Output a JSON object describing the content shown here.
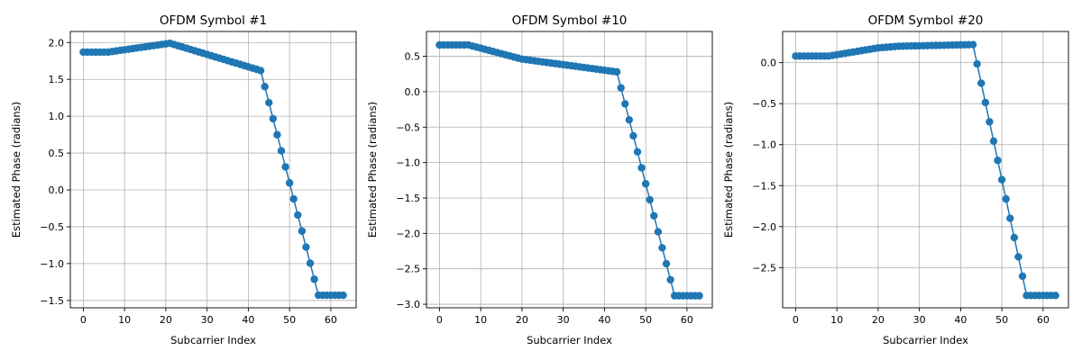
{
  "chart_data": [
    {
      "type": "line",
      "title": "OFDM Symbol #1",
      "xlabel": "Subcarrier Index",
      "ylabel": "Estimated Phase (radians)",
      "xlim": [
        -3.15,
        66.15
      ],
      "ylim": [
        -1.6,
        2.15
      ],
      "xticks": [
        0,
        10,
        20,
        30,
        40,
        50,
        60
      ],
      "yticks": [
        -1.5,
        -1.0,
        -0.5,
        0.0,
        0.5,
        1.0,
        1.5,
        2.0
      ],
      "ytick_labels": [
        "−1.5",
        "−1.0",
        "−0.5",
        "0.0",
        "0.5",
        "1.0",
        "1.5",
        "2.0"
      ],
      "grid": true,
      "color": "#1f77b4",
      "segments": [
        {
          "from": 0,
          "to": 6,
          "start": 1.87,
          "end": 1.87
        },
        {
          "from": 6,
          "to": 21,
          "start": 1.87,
          "end": 1.99
        },
        {
          "from": 21,
          "to": 43,
          "start": 1.99,
          "end": 1.62
        },
        {
          "from": 43,
          "to": 57,
          "start": 1.62,
          "end": -1.43
        },
        {
          "from": 57,
          "to": 63,
          "start": -1.43,
          "end": -1.43
        }
      ]
    },
    {
      "type": "line",
      "title": "OFDM Symbol #10",
      "xlabel": "Subcarrier Index",
      "ylabel": "Estimated Phase (radians)",
      "xlim": [
        -3.15,
        66.15
      ],
      "ylim": [
        -3.05,
        0.85
      ],
      "xticks": [
        0,
        10,
        20,
        30,
        40,
        50,
        60
      ],
      "yticks": [
        -3.0,
        -2.5,
        -2.0,
        -1.5,
        -1.0,
        -0.5,
        0.0,
        0.5
      ],
      "ytick_labels": [
        "−3.0",
        "−2.5",
        "−2.0",
        "−1.5",
        "−1.0",
        "−0.5",
        "0.0",
        "0.5"
      ],
      "grid": true,
      "color": "#1f77b4",
      "segments": [
        {
          "from": 0,
          "to": 7,
          "start": 0.66,
          "end": 0.66
        },
        {
          "from": 7,
          "to": 20,
          "start": 0.66,
          "end": 0.46
        },
        {
          "from": 20,
          "to": 43,
          "start": 0.46,
          "end": 0.28
        },
        {
          "from": 43,
          "to": 57,
          "start": 0.28,
          "end": -2.88
        },
        {
          "from": 57,
          "to": 63,
          "start": -2.88,
          "end": -2.88
        }
      ]
    },
    {
      "type": "line",
      "title": "OFDM Symbol #20",
      "xlabel": "Subcarrier Index",
      "ylabel": "Estimated Phase (radians)",
      "xlim": [
        -3.15,
        66.15
      ],
      "ylim": [
        -2.99,
        0.38
      ],
      "xticks": [
        0,
        10,
        20,
        30,
        40,
        50,
        60
      ],
      "yticks": [
        -2.5,
        -2.0,
        -1.5,
        -1.0,
        -0.5,
        0.0
      ],
      "ytick_labels": [
        "−2.5",
        "−2.0",
        "−1.5",
        "−1.0",
        "−0.5",
        "0.0"
      ],
      "grid": true,
      "color": "#1f77b4",
      "segments": [
        {
          "from": 0,
          "to": 8,
          "start": 0.08,
          "end": 0.08
        },
        {
          "from": 8,
          "to": 20,
          "start": 0.08,
          "end": 0.18
        },
        {
          "from": 20,
          "to": 25,
          "start": 0.18,
          "end": 0.2
        },
        {
          "from": 25,
          "to": 43,
          "start": 0.2,
          "end": 0.22
        },
        {
          "from": 43,
          "to": 56,
          "start": 0.22,
          "end": -2.84
        },
        {
          "from": 56,
          "to": 63,
          "start": -2.84,
          "end": -2.84
        }
      ]
    }
  ]
}
